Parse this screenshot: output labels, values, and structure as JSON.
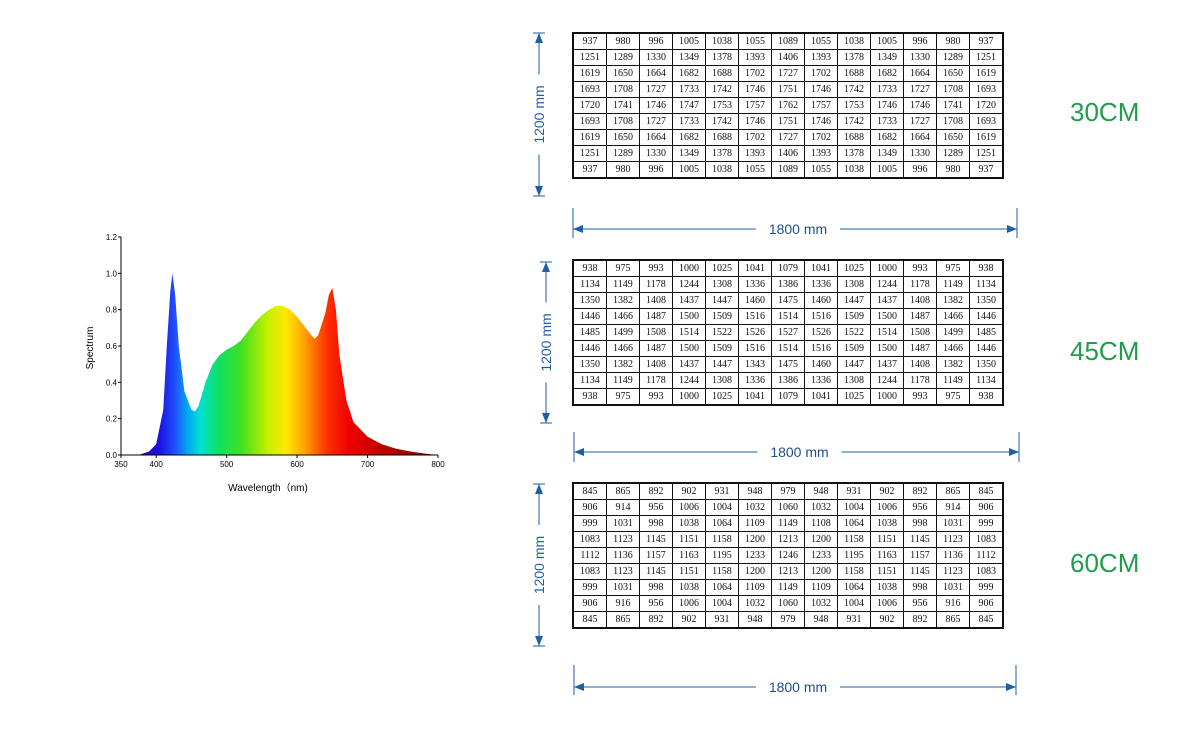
{
  "chart_data": [
    {
      "type": "area",
      "xlabel": "Wavelength（nm)",
      "ylabel": "Spectrum",
      "xlim": [
        350,
        800
      ],
      "ylim": [
        0,
        1.2
      ],
      "x_ticks": [
        "350",
        "400",
        "500",
        "600",
        "700",
        "800"
      ],
      "y_ticks": [
        "0.0",
        "0.2",
        "0.4",
        "0.6",
        "0.8",
        "1.0",
        "1.2"
      ],
      "grid": false,
      "fill": "wavelength-rainbow",
      "x": [
        375,
        390,
        400,
        410,
        415,
        420,
        423,
        427,
        432,
        440,
        450,
        455,
        460,
        470,
        480,
        490,
        500,
        510,
        520,
        530,
        540,
        550,
        560,
        570,
        580,
        590,
        600,
        610,
        620,
        625,
        630,
        640,
        645,
        650,
        655,
        660,
        670,
        680,
        700,
        720,
        740,
        760,
        780,
        800
      ],
      "values": [
        0.0,
        0.02,
        0.06,
        0.25,
        0.6,
        0.9,
        1.0,
        0.88,
        0.6,
        0.35,
        0.25,
        0.24,
        0.27,
        0.4,
        0.5,
        0.55,
        0.58,
        0.6,
        0.63,
        0.68,
        0.73,
        0.77,
        0.8,
        0.82,
        0.82,
        0.8,
        0.76,
        0.71,
        0.66,
        0.64,
        0.66,
        0.78,
        0.88,
        0.92,
        0.8,
        0.55,
        0.3,
        0.18,
        0.1,
        0.06,
        0.035,
        0.02,
        0.008,
        0.0
      ]
    },
    {
      "type": "table",
      "label": "30CM",
      "width_label": "1800 mm",
      "height_label": "1200 mm",
      "rows": [
        [
          "937",
          "980",
          "996",
          "1005",
          "1038",
          "1055",
          "1089",
          "1055",
          "1038",
          "1005",
          "996",
          "980",
          "937"
        ],
        [
          "1251",
          "1289",
          "1330",
          "1349",
          "1378",
          "1393",
          "1406",
          "1393",
          "1378",
          "1349",
          "1330",
          "1289",
          "1251"
        ],
        [
          "1619",
          "1650",
          "1664",
          "1682",
          "1688",
          "1702",
          "1727",
          "1702",
          "1688",
          "1682",
          "1664",
          "1650",
          "1619"
        ],
        [
          "1693",
          "1708",
          "1727",
          "1733",
          "1742",
          "1746",
          "1751",
          "1746",
          "1742",
          "1733",
          "1727",
          "1708",
          "1693"
        ],
        [
          "1720",
          "1741",
          "1746",
          "1747",
          "1753",
          "1757",
          "1762",
          "1757",
          "1753",
          "1746",
          "1746",
          "1741",
          "1720"
        ],
        [
          "1693",
          "1708",
          "1727",
          "1733",
          "1742",
          "1746",
          "1751",
          "1746",
          "1742",
          "1733",
          "1727",
          "1708",
          "1693"
        ],
        [
          "1619",
          "1650",
          "1664",
          "1682",
          "1688",
          "1702",
          "1727",
          "1702",
          "1688",
          "1682",
          "1664",
          "1650",
          "1619"
        ],
        [
          "1251",
          "1289",
          "1330",
          "1349",
          "1378",
          "1393",
          "1406",
          "1393",
          "1378",
          "1349",
          "1330",
          "1289",
          "1251"
        ],
        [
          "937",
          "980",
          "996",
          "1005",
          "1038",
          "1055",
          "1089",
          "1055",
          "1038",
          "1005",
          "996",
          "980",
          "937"
        ]
      ]
    },
    {
      "type": "table",
      "label": "45CM",
      "width_label": "1800 mm",
      "height_label": "1200 mm",
      "rows": [
        [
          "938",
          "975",
          "993",
          "1000",
          "1025",
          "1041",
          "1079",
          "1041",
          "1025",
          "1000",
          "993",
          "975",
          "938"
        ],
        [
          "1134",
          "1149",
          "1178",
          "1244",
          "1308",
          "1336",
          "1386",
          "1336",
          "1308",
          "1244",
          "1178",
          "1149",
          "1134"
        ],
        [
          "1350",
          "1382",
          "1408",
          "1437",
          "1447",
          "1460",
          "1475",
          "1460",
          "1447",
          "1437",
          "1408",
          "1382",
          "1350"
        ],
        [
          "1446",
          "1466",
          "1487",
          "1500",
          "1509",
          "1516",
          "1514",
          "1516",
          "1509",
          "1500",
          "1487",
          "1466",
          "1446"
        ],
        [
          "1485",
          "1499",
          "1508",
          "1514",
          "1522",
          "1526",
          "1527",
          "1526",
          "1522",
          "1514",
          "1508",
          "1499",
          "1485"
        ],
        [
          "1446",
          "1466",
          "1487",
          "1500",
          "1509",
          "1516",
          "1514",
          "1516",
          "1509",
          "1500",
          "1487",
          "1466",
          "1446"
        ],
        [
          "1350",
          "1382",
          "1408",
          "1437",
          "1447",
          "1343",
          "1475",
          "1460",
          "1447",
          "1437",
          "1408",
          "1382",
          "1350"
        ],
        [
          "1134",
          "1149",
          "1178",
          "1244",
          "1308",
          "1336",
          "1386",
          "1336",
          "1308",
          "1244",
          "1178",
          "1149",
          "1134"
        ],
        [
          "938",
          "975",
          "993",
          "1000",
          "1025",
          "1041",
          "1079",
          "1041",
          "1025",
          "1000",
          "993",
          "975",
          "938"
        ]
      ]
    },
    {
      "type": "table",
      "label": "60CM",
      "width_label": "1800 mm",
      "height_label": "1200 mm",
      "rows": [
        [
          "845",
          "865",
          "892",
          "902",
          "931",
          "948",
          "979",
          "948",
          "931",
          "902",
          "892",
          "865",
          "845"
        ],
        [
          "906",
          "914",
          "956",
          "1006",
          "1004",
          "1032",
          "1060",
          "1032",
          "1004",
          "1006",
          "956",
          "914",
          "906"
        ],
        [
          "999",
          "1031",
          "998",
          "1038",
          "1064",
          "1109",
          "1149",
          "1108",
          "1064",
          "1038",
          "998",
          "1031",
          "999"
        ],
        [
          "1083",
          "1123",
          "1145",
          "1151",
          "1158",
          "1200",
          "1213",
          "1200",
          "1158",
          "1151",
          "1145",
          "1123",
          "1083"
        ],
        [
          "1112",
          "1136",
          "1157",
          "1163",
          "1195",
          "1233",
          "1246",
          "1233",
          "1195",
          "1163",
          "1157",
          "1136",
          "1112"
        ],
        [
          "1083",
          "1123",
          "1145",
          "1151",
          "1158",
          "1200",
          "1213",
          "1200",
          "1158",
          "1151",
          "1145",
          "1123",
          "1083"
        ],
        [
          "999",
          "1031",
          "998",
          "1038",
          "1064",
          "1109",
          "1149",
          "1109",
          "1064",
          "1038",
          "998",
          "1031",
          "999"
        ],
        [
          "906",
          "916",
          "956",
          "1006",
          "1004",
          "1032",
          "1060",
          "1032",
          "1004",
          "1006",
          "956",
          "916",
          "906"
        ],
        [
          "845",
          "865",
          "892",
          "902",
          "931",
          "948",
          "979",
          "948",
          "931",
          "902",
          "892",
          "865",
          "845"
        ]
      ]
    }
  ],
  "colors": {
    "dimension": "#1e5fa8",
    "height_label": "#1e9e4a"
  }
}
